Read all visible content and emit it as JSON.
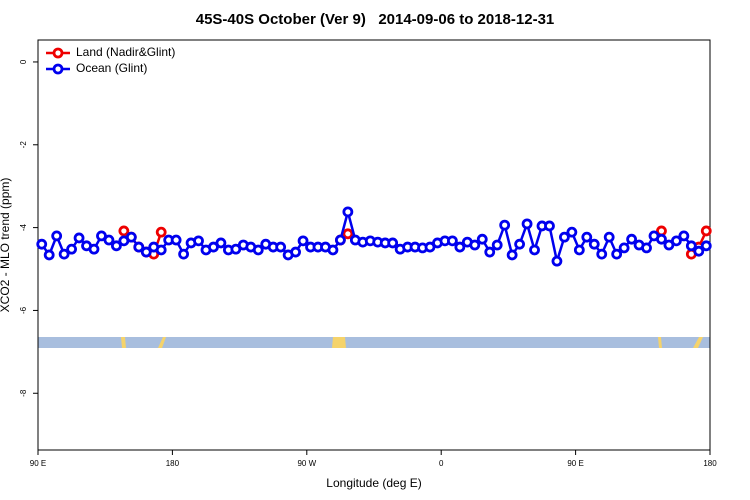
{
  "chart_data": {
    "type": "line",
    "title": "45S-40S October (Ver 9)   2014-09-06 to 2018-12-31",
    "x_label": "Longitude (deg E)",
    "y_label": "XCO2 - MLO trend (ppm)",
    "x": [
      92.5,
      97.5,
      102.5,
      107.5,
      112.5,
      117.5,
      122.5,
      127.5,
      132.5,
      137.5,
      142.5,
      147.5,
      152.5,
      157.5,
      162.5,
      167.5,
      172.5,
      177.5,
      182.5,
      187.5,
      192.5,
      197.5,
      202.5,
      207.5,
      212.5,
      217.5,
      222.5,
      227.5,
      232.5,
      237.5,
      242.5,
      247.5,
      252.5,
      257.5,
      262.5,
      267.5,
      272.5,
      277.5,
      282.5,
      287.5,
      292.5,
      297.5,
      302.5,
      307.5,
      312.5,
      317.5,
      322.5,
      327.5,
      332.5,
      337.5,
      342.5,
      347.5,
      352.5,
      357.5,
      362.5,
      367.5,
      372.5,
      377.5,
      382.5,
      387.5,
      392.5,
      397.5,
      402.5,
      407.5,
      412.5,
      417.5,
      422.5,
      427.5,
      432.5,
      437.5,
      442.5,
      447.5,
      452.5,
      457.5,
      462.5,
      467.5,
      472.5,
      477.5,
      482.5,
      487.5,
      492.5,
      497.5,
      502.5,
      507.5,
      512.5,
      517.5,
      522.5,
      527.5,
      532.5,
      537.5
    ],
    "series": [
      {
        "name": "Land (Nadir&Glint)",
        "color": "#ee0000",
        "values": [
          null,
          null,
          null,
          null,
          null,
          null,
          null,
          null,
          null,
          null,
          null,
          -4.08,
          -4.23,
          -4.47,
          -4.59,
          -4.64,
          -4.11,
          null,
          null,
          null,
          null,
          null,
          null,
          null,
          null,
          null,
          null,
          null,
          null,
          null,
          null,
          null,
          null,
          null,
          null,
          null,
          null,
          null,
          null,
          null,
          -4.3,
          -4.15,
          null,
          null,
          null,
          null,
          null,
          null,
          null,
          null,
          null,
          null,
          null,
          null,
          null,
          null,
          null,
          null,
          null,
          null,
          null,
          null,
          null,
          null,
          null,
          null,
          null,
          null,
          null,
          null,
          null,
          null,
          null,
          null,
          null,
          null,
          null,
          null,
          null,
          null,
          null,
          null,
          null,
          -4.08,
          null,
          null,
          null,
          -4.64,
          -4.47,
          -4.08
        ]
      },
      {
        "name": "Ocean (Glint)",
        "color": "#0000ee",
        "values": [
          -4.4,
          -4.66,
          -4.2,
          -4.64,
          -4.52,
          -4.25,
          -4.44,
          -4.52,
          -4.2,
          -4.3,
          -4.44,
          -4.32,
          -4.23,
          -4.47,
          -4.59,
          -4.47,
          -4.54,
          -4.3,
          -4.3,
          -4.64,
          -4.37,
          -4.32,
          -4.54,
          -4.47,
          -4.37,
          -4.54,
          -4.52,
          -4.42,
          -4.47,
          -4.54,
          -4.4,
          -4.47,
          -4.47,
          -4.66,
          -4.59,
          -4.32,
          -4.47,
          -4.47,
          -4.47,
          -4.54,
          -4.3,
          -3.62,
          -4.3,
          -4.35,
          -4.32,
          -4.35,
          -4.37,
          -4.37,
          -4.52,
          -4.47,
          -4.47,
          -4.49,
          -4.47,
          -4.37,
          -4.32,
          -4.32,
          -4.47,
          -4.35,
          -4.42,
          -4.28,
          -4.59,
          -4.42,
          -3.94,
          -4.66,
          -4.4,
          -3.91,
          -4.54,
          -3.96,
          -3.96,
          -4.81,
          -4.23,
          -4.11,
          -4.54,
          -4.23,
          -4.4,
          -4.64,
          -4.23,
          -4.64,
          -4.49,
          -4.28,
          -4.42,
          -4.49,
          -4.2,
          -4.28,
          -4.42,
          -4.32,
          -4.2,
          -4.44,
          -4.57,
          -4.44
        ]
      }
    ],
    "xlim": [
      90,
      540
    ],
    "xticks": [
      {
        "value": 90,
        "label": "90 E"
      },
      180,
      {
        "value": 270,
        "label": "90 W"
      },
      {
        "value": 360,
        "label": "0"
      },
      {
        "value": 450,
        "label": "90 E"
      },
      {
        "value": 540,
        "label": "180"
      }
    ],
    "ylim": [
      -9.37,
      0.53
    ],
    "yticks": [
      0,
      -2,
      -4,
      -6,
      -8
    ],
    "legend": "top-left"
  }
}
